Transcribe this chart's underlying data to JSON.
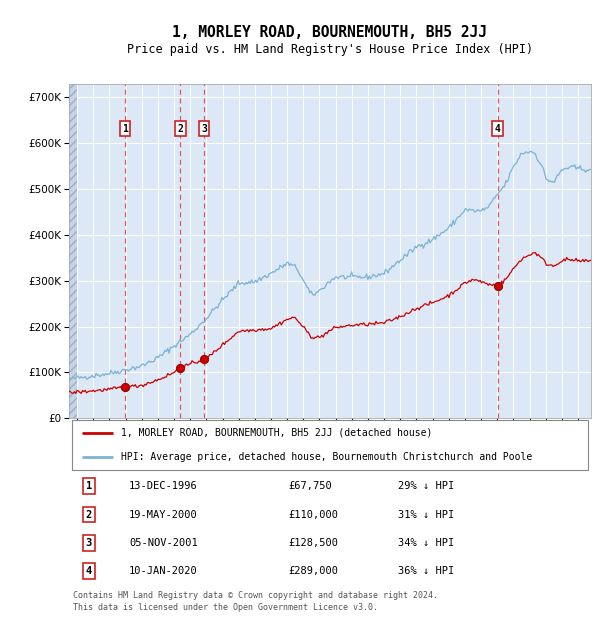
{
  "title": "1, MORLEY ROAD, BOURNEMOUTH, BH5 2JJ",
  "subtitle": "Price paid vs. HM Land Registry's House Price Index (HPI)",
  "footer_line1": "Contains HM Land Registry data © Crown copyright and database right 2024.",
  "footer_line2": "This data is licensed under the Open Government Licence v3.0.",
  "legend_red": "1, MORLEY ROAD, BOURNEMOUTH, BH5 2JJ (detached house)",
  "legend_blue": "HPI: Average price, detached house, Bournemouth Christchurch and Poole",
  "transactions": [
    {
      "num": 1,
      "date": "13-DEC-1996",
      "year": 1996.96,
      "price": 67750,
      "hpi_pct": "29% ↓ HPI"
    },
    {
      "num": 2,
      "date": "19-MAY-2000",
      "year": 2000.38,
      "price": 110000,
      "hpi_pct": "31% ↓ HPI"
    },
    {
      "num": 3,
      "date": "05-NOV-2001",
      "year": 2001.85,
      "price": 128500,
      "hpi_pct": "34% ↓ HPI"
    },
    {
      "num": 4,
      "date": "10-JAN-2020",
      "year": 2020.03,
      "price": 289000,
      "hpi_pct": "36% ↓ HPI"
    }
  ],
  "hpi_color": "#7ab3d4",
  "price_color": "#cc0000",
  "vline_color": "#e05050",
  "plot_bg": "#dce8f5",
  "ylim": [
    0,
    730000
  ],
  "yticks": [
    0,
    100000,
    200000,
    300000,
    400000,
    500000,
    600000,
    700000
  ],
  "xlim_start": 1993.5,
  "xlim_end": 2025.8,
  "xticks": [
    1994,
    1995,
    1996,
    1997,
    1998,
    1999,
    2000,
    2001,
    2002,
    2003,
    2004,
    2005,
    2006,
    2007,
    2008,
    2009,
    2010,
    2011,
    2012,
    2013,
    2014,
    2015,
    2016,
    2017,
    2018,
    2019,
    2020,
    2021,
    2022,
    2023,
    2024,
    2025
  ],
  "hpi_anchors": [
    [
      1993.5,
      85000
    ],
    [
      1994.0,
      88000
    ],
    [
      1995.0,
      93000
    ],
    [
      1996.0,
      98000
    ],
    [
      1997.0,
      106000
    ],
    [
      1998.0,
      114000
    ],
    [
      1999.0,
      132000
    ],
    [
      2000.0,
      158000
    ],
    [
      2001.0,
      183000
    ],
    [
      2002.0,
      218000
    ],
    [
      2003.0,
      258000
    ],
    [
      2004.0,
      295000
    ],
    [
      2005.0,
      298000
    ],
    [
      2006.0,
      316000
    ],
    [
      2007.0,
      338000
    ],
    [
      2007.6,
      328000
    ],
    [
      2008.0,
      300000
    ],
    [
      2008.5,
      268000
    ],
    [
      2009.0,
      278000
    ],
    [
      2009.6,
      298000
    ],
    [
      2010.0,
      308000
    ],
    [
      2011.0,
      308000
    ],
    [
      2012.0,
      308000
    ],
    [
      2013.0,
      316000
    ],
    [
      2014.0,
      345000
    ],
    [
      2015.0,
      374000
    ],
    [
      2016.0,
      390000
    ],
    [
      2017.0,
      415000
    ],
    [
      2018.0,
      455000
    ],
    [
      2018.5,
      453000
    ],
    [
      2019.0,
      452000
    ],
    [
      2019.5,
      462000
    ],
    [
      2020.0,
      488000
    ],
    [
      2020.5,
      510000
    ],
    [
      2021.0,
      548000
    ],
    [
      2021.5,
      578000
    ],
    [
      2022.0,
      582000
    ],
    [
      2022.3,
      580000
    ],
    [
      2022.8,
      548000
    ],
    [
      2023.0,
      522000
    ],
    [
      2023.5,
      515000
    ],
    [
      2024.0,
      542000
    ],
    [
      2024.5,
      548000
    ],
    [
      2025.0,
      545000
    ],
    [
      2025.8,
      542000
    ]
  ],
  "price_anchors": [
    [
      1993.5,
      56000
    ],
    [
      1994.0,
      57000
    ],
    [
      1995.0,
      60000
    ],
    [
      1996.0,
      63000
    ],
    [
      1996.96,
      67750
    ],
    [
      1997.0,
      67500
    ],
    [
      1998.0,
      72000
    ],
    [
      1999.0,
      84000
    ],
    [
      2000.0,
      100000
    ],
    [
      2000.38,
      110000
    ],
    [
      2001.0,
      118000
    ],
    [
      2001.85,
      128500
    ],
    [
      2002.0,
      130000
    ],
    [
      2003.0,
      160000
    ],
    [
      2004.0,
      190000
    ],
    [
      2005.0,
      193000
    ],
    [
      2006.0,
      196000
    ],
    [
      2007.0,
      216000
    ],
    [
      2007.5,
      220000
    ],
    [
      2008.0,
      198000
    ],
    [
      2008.5,
      178000
    ],
    [
      2009.0,
      176000
    ],
    [
      2009.5,
      188000
    ],
    [
      2010.0,
      198000
    ],
    [
      2011.0,
      203000
    ],
    [
      2012.0,
      205000
    ],
    [
      2013.0,
      208000
    ],
    [
      2014.0,
      222000
    ],
    [
      2015.0,
      240000
    ],
    [
      2016.0,
      252000
    ],
    [
      2017.0,
      268000
    ],
    [
      2018.0,
      295000
    ],
    [
      2018.5,
      303000
    ],
    [
      2019.0,
      298000
    ],
    [
      2019.5,
      292000
    ],
    [
      2020.03,
      289000
    ],
    [
      2020.5,
      302000
    ],
    [
      2021.0,
      326000
    ],
    [
      2021.5,
      348000
    ],
    [
      2022.0,
      356000
    ],
    [
      2022.3,
      363000
    ],
    [
      2022.8,
      347000
    ],
    [
      2023.0,
      338000
    ],
    [
      2023.5,
      332000
    ],
    [
      2024.0,
      345000
    ],
    [
      2024.5,
      346000
    ],
    [
      2025.0,
      343000
    ],
    [
      2025.8,
      343000
    ]
  ]
}
